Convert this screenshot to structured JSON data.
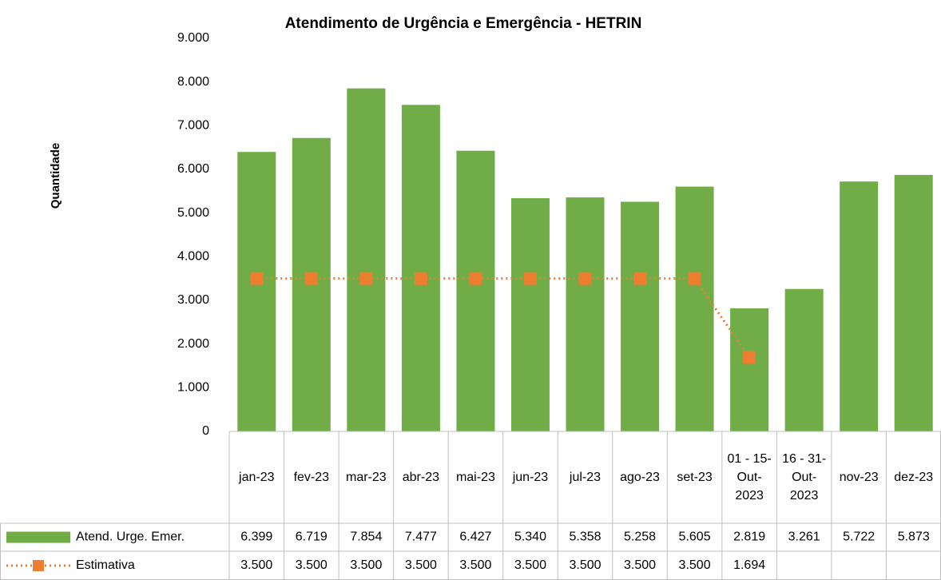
{
  "chart_data": {
    "type": "bar",
    "title": "Atendimento de Urgência e Emergência - HETRIN",
    "y_label": "Quantidade",
    "categories": [
      "jan-23",
      "fev-23",
      "mar-23",
      "abr-23",
      "mai-23",
      "jun-23",
      "jul-23",
      "ago-23",
      "set-23",
      "01 - 15-Out-2023",
      "16 - 31-Out-2023",
      "nov-23",
      "dez-23"
    ],
    "series": [
      {
        "name": "Atend. Urge. Emer.",
        "type": "bar",
        "color": "#70ad47",
        "values": [
          6399,
          6719,
          7854,
          7477,
          6427,
          5340,
          5358,
          5258,
          5605,
          2819,
          3261,
          5722,
          5873
        ],
        "value_labels": [
          "6.399",
          "6.719",
          "7.854",
          "7.477",
          "6.427",
          "5.340",
          "5.358",
          "5.258",
          "5.605",
          "2.819",
          "3.261",
          "5.722",
          "5.873"
        ]
      },
      {
        "name": "Estimativa",
        "type": "line",
        "color": "#ed7d31",
        "values": [
          3500,
          3500,
          3500,
          3500,
          3500,
          3500,
          3500,
          3500,
          3500,
          1694,
          null,
          null,
          null
        ],
        "value_labels": [
          "3.500",
          "3.500",
          "3.500",
          "3.500",
          "3.500",
          "3.500",
          "3.500",
          "3.500",
          "3.500",
          "1.694",
          null,
          null,
          null
        ]
      }
    ],
    "ylim": [
      0,
      9000
    ],
    "yticks": [
      0,
      {
        "value": 1000,
        "label": "1.000"
      },
      {
        "value": 2000,
        "label": "2.000"
      },
      {
        "value": 3000,
        "label": "3.000"
      },
      {
        "value": 4000,
        "label": "4.000"
      },
      {
        "value": 5000,
        "label": "5.000"
      },
      {
        "value": 6000,
        "label": "6.000"
      },
      {
        "value": 7000,
        "label": "7.000"
      },
      {
        "value": 8000,
        "label": "8.000"
      },
      {
        "value": 9000,
        "label": "9.000"
      }
    ],
    "grid": false,
    "data_table": true
  }
}
